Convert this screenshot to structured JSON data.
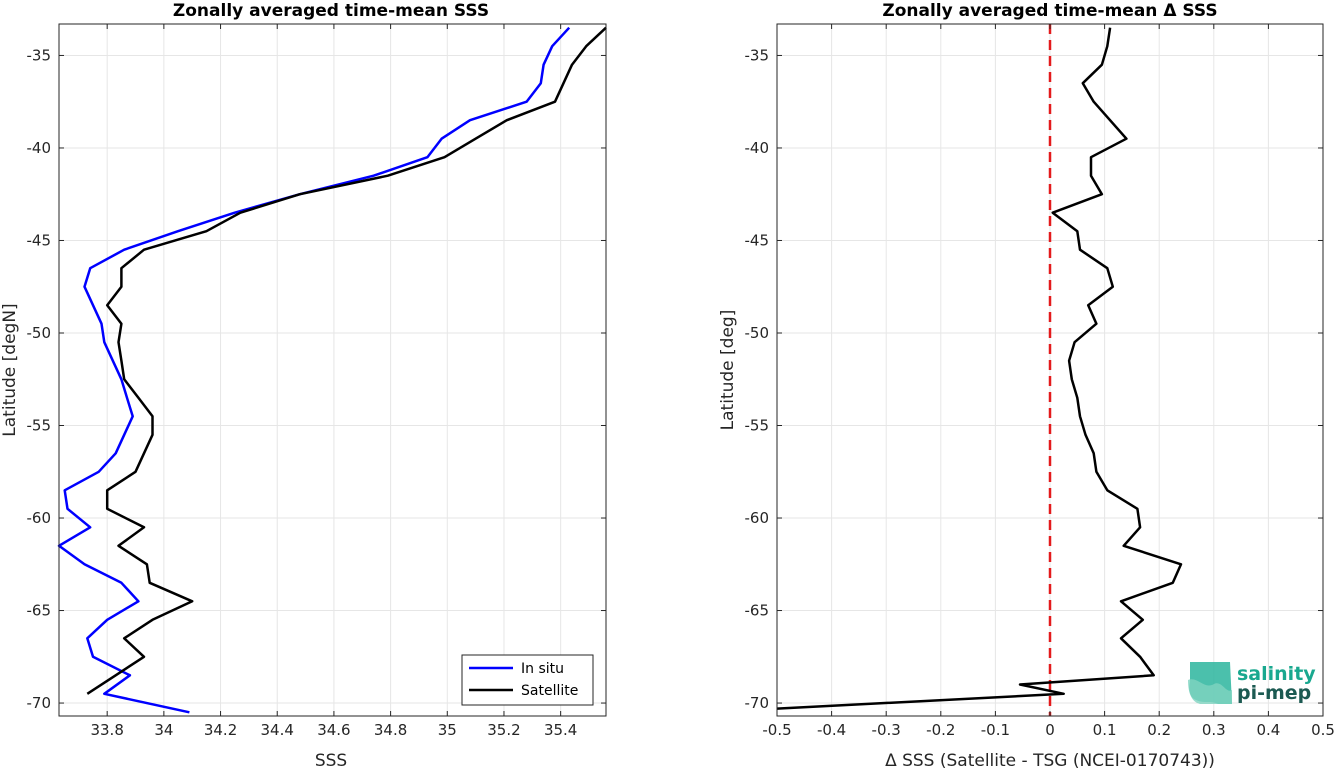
{
  "colors": {
    "in_situ": "#0000ff",
    "satellite": "#000000",
    "zero_line": "#e31a1c",
    "logo_teal": "#19a88f",
    "logo_dark": "#1c5a52"
  },
  "logo": {
    "line1": "salinity",
    "line2": "pi-mep"
  },
  "chart_data": [
    {
      "type": "line",
      "title": "Zonally averaged time-mean SSS",
      "xlabel": "SSS",
      "ylabel": "Latitude [degN]",
      "xlim": [
        33.63,
        35.56
      ],
      "ylim": [
        -70.7,
        -33.3
      ],
      "xticks": [
        33.8,
        34,
        34.2,
        34.4,
        34.6,
        34.8,
        35,
        35.2,
        35.4
      ],
      "xtick_labels": [
        "33.8",
        "34",
        "34.2",
        "34.4",
        "34.6",
        "34.8",
        "35",
        "35.2",
        "35.4"
      ],
      "yticks": [
        -35,
        -40,
        -45,
        -50,
        -55,
        -60,
        -65,
        -70
      ],
      "ytick_labels": [
        "-35",
        "-40",
        "-45",
        "-50",
        "-55",
        "-60",
        "-65",
        "-70"
      ],
      "grid": true,
      "legend": "bottom-right",
      "series": [
        {
          "name": "In situ",
          "x": [
            35.43,
            35.37,
            35.34,
            35.33,
            35.28,
            35.08,
            34.98,
            34.93,
            34.74,
            34.48,
            34.25,
            34.05,
            33.86,
            33.74,
            33.72,
            33.75,
            33.78,
            33.79,
            33.82,
            33.85,
            33.87,
            33.89,
            33.86,
            33.83,
            33.77,
            33.65,
            33.66,
            33.74,
            33.63,
            33.72,
            33.85,
            33.91,
            33.8,
            33.73,
            33.75,
            33.88,
            33.79,
            34.09
          ],
          "y": [
            -33.5,
            -34.5,
            -35.5,
            -36.5,
            -37.5,
            -38.5,
            -39.5,
            -40.5,
            -41.5,
            -42.5,
            -43.5,
            -44.5,
            -45.5,
            -46.5,
            -47.5,
            -48.5,
            -49.5,
            -50.5,
            -51.5,
            -52.5,
            -53.5,
            -54.5,
            -55.5,
            -56.5,
            -57.5,
            -58.5,
            -59.5,
            -60.5,
            -61.5,
            -62.5,
            -63.5,
            -64.5,
            -65.5,
            -66.5,
            -67.5,
            -68.5,
            -69.5,
            -70.5
          ]
        },
        {
          "name": "Satellite",
          "x": [
            35.56,
            35.49,
            35.44,
            35.41,
            35.38,
            35.21,
            35.1,
            34.99,
            34.79,
            34.48,
            34.27,
            34.15,
            33.93,
            33.85,
            33.85,
            33.8,
            33.85,
            33.84,
            33.85,
            33.86,
            33.91,
            33.96,
            33.96,
            33.93,
            33.9,
            33.8,
            33.8,
            33.93,
            33.84,
            33.94,
            33.95,
            34.1,
            33.96,
            33.86,
            33.93,
            33.83,
            33.73
          ],
          "y": [
            -33.5,
            -34.5,
            -35.5,
            -36.5,
            -37.5,
            -38.5,
            -39.5,
            -40.5,
            -41.5,
            -42.5,
            -43.5,
            -44.5,
            -45.5,
            -46.5,
            -47.5,
            -48.5,
            -49.5,
            -50.5,
            -51.5,
            -52.5,
            -53.5,
            -54.5,
            -55.5,
            -56.5,
            -57.5,
            -58.5,
            -59.5,
            -60.5,
            -61.5,
            -62.5,
            -63.5,
            -64.5,
            -65.5,
            -66.5,
            -67.5,
            -68.5,
            -69.5
          ]
        }
      ]
    },
    {
      "type": "line",
      "title": "Zonally averaged time-mean Δ SSS",
      "xlabel": "Δ SSS (Satellite - TSG (NCEI-0170743))",
      "ylabel": "Latitude [deg]",
      "xlim": [
        -0.5,
        0.5
      ],
      "ylim": [
        -70.7,
        -33.3
      ],
      "xticks": [
        -0.5,
        -0.4,
        -0.3,
        -0.2,
        -0.1,
        0,
        0.1,
        0.2,
        0.3,
        0.4,
        0.5
      ],
      "xtick_labels": [
        "-0.5",
        "-0.4",
        "-0.3",
        "-0.2",
        "-0.1",
        "0",
        "0.1",
        "0.2",
        "0.3",
        "0.4",
        "0.5"
      ],
      "yticks": [
        -35,
        -40,
        -45,
        -50,
        -55,
        -60,
        -65,
        -70
      ],
      "ytick_labels": [
        "-35",
        "-40",
        "-45",
        "-50",
        "-55",
        "-60",
        "-65",
        "-70"
      ],
      "grid": true,
      "reference_line": {
        "x": 0,
        "style": "dashed"
      },
      "series": [
        {
          "name": "",
          "x": [
            0.11,
            0.105,
            0.095,
            0.06,
            0.08,
            0.14,
            0.075,
            0.075,
            0.095,
            0.005,
            0.05,
            0.055,
            0.105,
            0.115,
            0.07,
            0.085,
            0.045,
            0.035,
            0.04,
            0.05,
            0.055,
            0.065,
            0.08,
            0.085,
            0.105,
            0.16,
            0.165,
            0.135,
            0.24,
            0.225,
            0.13,
            0.17,
            0.13,
            0.165,
            0.19,
            -0.055,
            0.025,
            -0.5
          ],
          "y": [
            -33.5,
            -34.5,
            -35.5,
            -36.5,
            -37.5,
            -39.5,
            -40.5,
            -41.5,
            -42.5,
            -43.5,
            -44.5,
            -45.5,
            -46.5,
            -47.5,
            -48.5,
            -49.5,
            -50.5,
            -51.5,
            -52.5,
            -53.5,
            -54.5,
            -55.5,
            -56.5,
            -57.5,
            -58.5,
            -59.5,
            -60.5,
            -61.5,
            -62.5,
            -63.5,
            -64.5,
            -65.5,
            -66.5,
            -67.5,
            -68.5,
            -69.0,
            -69.5,
            -70.3
          ]
        }
      ]
    }
  ]
}
